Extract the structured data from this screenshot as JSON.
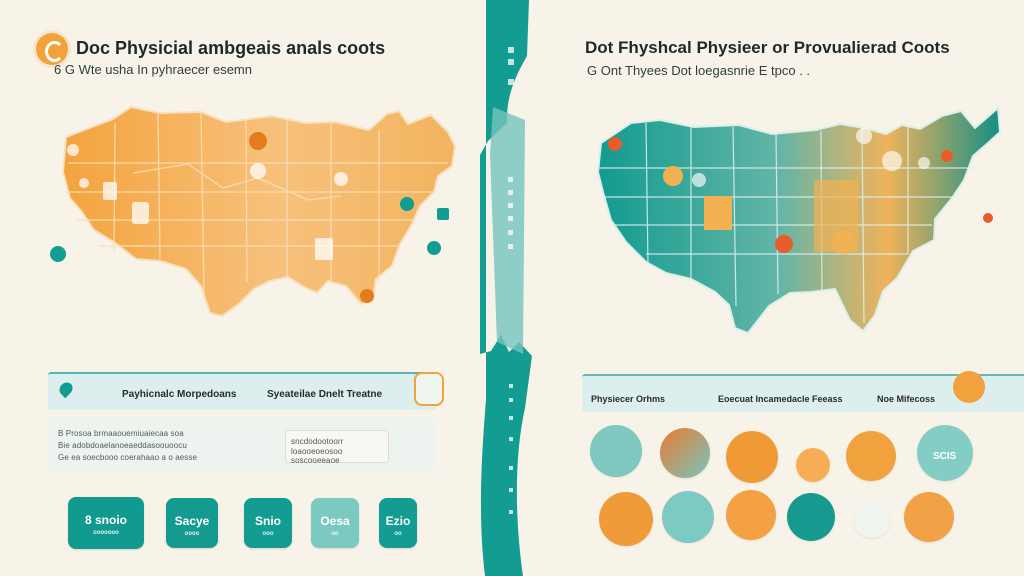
{
  "left": {
    "title": "Doc Physicial ambgeais anals coots",
    "subtitle": "6 G Wte usha In pyhraecer esemn",
    "bar": {
      "label_left": "Payhicnalc Morpedoans",
      "label_right": "Syeateilae Dnelt Treatne"
    },
    "text_lines": [
      "B Prosoa brmaaouemiuaiecaa soa",
      "Bie adobdoaelanoeaeddasoouoocu",
      "Ge ea soecbooo coerahaao a o aesse"
    ],
    "right_text_lines": [
      "sncdodootoorr",
      "loaooeoeosoo",
      "soscooeeaoe"
    ],
    "cards": [
      {
        "value": "8 snoio",
        "sub": "ooooooo"
      },
      {
        "value": "Sacye",
        "sub": "oooo"
      },
      {
        "value": "Snio",
        "sub": "ooo"
      },
      {
        "value": "Oesa",
        "sub": "oo"
      },
      {
        "value": "Ezio",
        "sub": "oo"
      }
    ]
  },
  "divider": {
    "top_text": "ooo",
    "bottom_text": "ooo"
  },
  "right": {
    "title": "Dot Fhyshcal Physieer or Provualierad Coots",
    "subtitle": "G Ont Thyees Dot loegasnrie E tpco . .",
    "bar": {
      "label_left": "Physiecer Orhms",
      "label_middle": "Eoecuat Incamedacle Feeass",
      "label_right": "Noe Mifecoss"
    },
    "circles_top_label": "SCIS",
    "circles": [
      {
        "name": "c1"
      },
      {
        "name": "c2"
      },
      {
        "name": "c3"
      },
      {
        "name": "c4"
      },
      {
        "name": "c5"
      },
      {
        "name": "c6"
      },
      {
        "name": "c7"
      },
      {
        "name": "c8"
      },
      {
        "name": "c9"
      },
      {
        "name": "c10"
      },
      {
        "name": "c11"
      },
      {
        "name": "c12"
      }
    ]
  },
  "colors": {
    "teal": "#139c91",
    "teal_light": "#77c7c0",
    "orange": "#f3a142",
    "orange_dark": "#e98c2b",
    "cream": "#f8f3e8"
  }
}
